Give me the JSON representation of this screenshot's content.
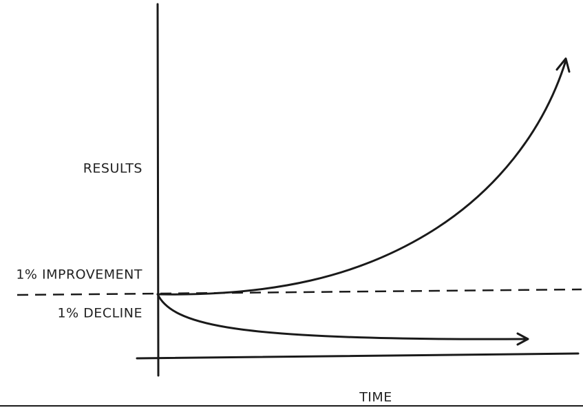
{
  "axes": {
    "y_label": "RESULTS",
    "x_label": "TIME"
  },
  "curves": [
    {
      "label": "1% IMPROVEMENT"
    },
    {
      "label": "1% DECLINE"
    }
  ]
}
